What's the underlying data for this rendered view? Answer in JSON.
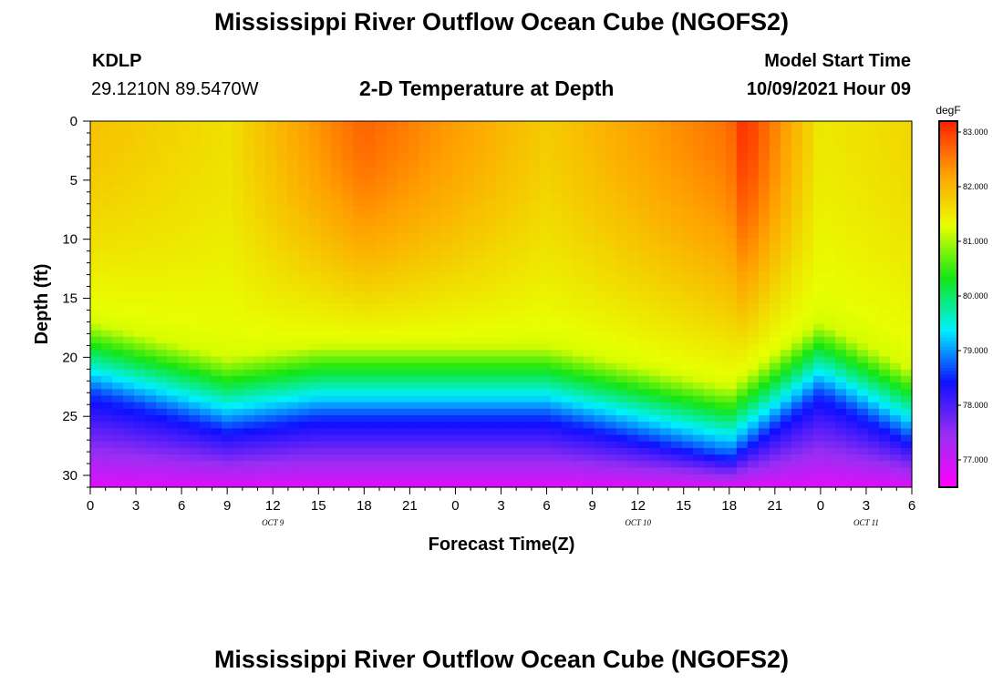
{
  "header": {
    "title": "Mississippi River Outflow Ocean Cube (NGOFS2)",
    "station": "KDLP",
    "coords": "29.1210N  89.5470W",
    "subtitle": "2-D Temperature at Depth",
    "start_label": "Model Start Time",
    "start_time": "10/09/2021 Hour 09"
  },
  "footer": {
    "title": "Mississippi River Outflow Ocean Cube (NGOFS2)"
  },
  "chart_data": {
    "type": "heatmap",
    "title": "2-D Temperature at Depth",
    "xlabel": "Forecast Time(Z)",
    "ylabel": "Depth (ft)",
    "x_range_hours": [
      0,
      54
    ],
    "x_tick_labels": [
      "0",
      "3",
      "6",
      "9",
      "12",
      "15",
      "18",
      "21",
      "0",
      "3",
      "6",
      "9",
      "12",
      "15",
      "18",
      "21",
      "0",
      "3",
      "6"
    ],
    "date_labels": [
      {
        "text": "OCT 9",
        "at_hour": 12
      },
      {
        "text": "OCT 10",
        "at_hour": 36
      },
      {
        "text": "OCT 11",
        "at_hour": 51
      }
    ],
    "y_range_ft": [
      0,
      31
    ],
    "y_ticks": [
      0,
      5,
      10,
      15,
      20,
      25,
      30
    ],
    "colorbar": {
      "unit": "degF",
      "range": [
        76.5,
        83.2
      ],
      "ticks": [
        77.0,
        78.0,
        79.0,
        80.0,
        81.0,
        82.0,
        83.0
      ],
      "tick_labels": [
        "77.000",
        "78.000",
        "79.000",
        "80.000",
        "81.000",
        "82.000",
        "83.000"
      ],
      "colors": [
        "#ff00ff",
        "#9a2ef2",
        "#1010ff",
        "#00f0ff",
        "#14e614",
        "#e8ff00",
        "#ffa000",
        "#ff2000"
      ]
    },
    "approx_surface_temp_degF": {
      "hour_0": 81.9,
      "hour_9": 81.6,
      "hour_18": 82.7,
      "hour_30": 81.8,
      "hour_42": 82.6,
      "hour_43": 83.1,
      "hour_48": 81.5,
      "hour_54": 81.7
    },
    "approx_bottom_temp_degF": 76.8,
    "thermocline_depth_ft": {
      "hour_0": 21,
      "hour_9": 24,
      "hour_15": 23,
      "hour_30": 23,
      "hour_42": 26.5,
      "hour_48": 21,
      "hour_54": 25
    }
  }
}
